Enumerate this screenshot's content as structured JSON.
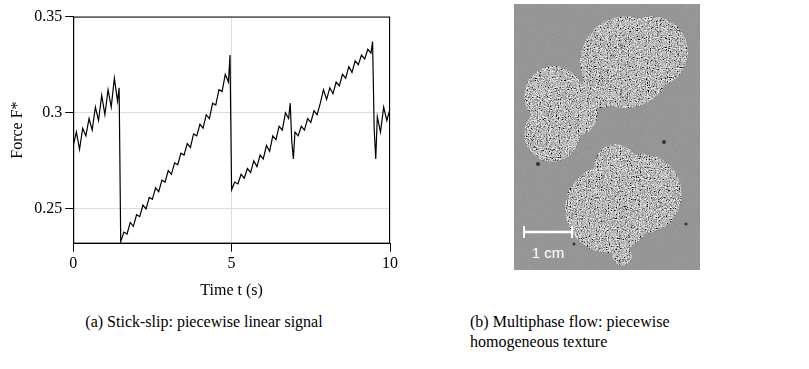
{
  "chart_data": {
    "type": "line",
    "title": "(a) Stick-slip: piecewise linear signal",
    "x_label": "Time t (s)",
    "y_label": "Force F*",
    "color": "#000000",
    "grid": true,
    "xlim": [
      0,
      10
    ],
    "xticks": [
      0,
      5,
      10
    ],
    "ylim": [
      0.232,
      0.35
    ],
    "yticks": [
      0.25,
      0.3,
      0.35
    ],
    "x": [
      0.0,
      0.1,
      0.2,
      0.3,
      0.4,
      0.5,
      0.6,
      0.7,
      0.8,
      0.9,
      1.0,
      1.1,
      1.2,
      1.3,
      1.4,
      1.45,
      1.5,
      1.6,
      1.7,
      1.8,
      1.9,
      2.0,
      2.1,
      2.2,
      2.3,
      2.4,
      2.5,
      2.6,
      2.7,
      2.8,
      2.9,
      3.0,
      3.1,
      3.2,
      3.3,
      3.4,
      3.5,
      3.6,
      3.7,
      3.8,
      3.9,
      4.0,
      4.1,
      4.2,
      4.3,
      4.4,
      4.5,
      4.6,
      4.7,
      4.8,
      4.9,
      4.95,
      5.0,
      5.1,
      5.2,
      5.3,
      5.4,
      5.5,
      5.6,
      5.7,
      5.8,
      5.9,
      6.0,
      6.1,
      6.2,
      6.3,
      6.4,
      6.5,
      6.6,
      6.7,
      6.8,
      6.85,
      6.9,
      6.95,
      7.0,
      7.1,
      7.2,
      7.3,
      7.4,
      7.5,
      7.6,
      7.7,
      7.8,
      7.9,
      8.0,
      8.1,
      8.2,
      8.3,
      8.4,
      8.5,
      8.6,
      8.7,
      8.8,
      8.9,
      9.0,
      9.1,
      9.2,
      9.3,
      9.4,
      9.45,
      9.5,
      9.55,
      9.6,
      9.7,
      9.8,
      9.9,
      10.0
    ],
    "values": [
      0.283,
      0.29,
      0.281,
      0.292,
      0.288,
      0.297,
      0.291,
      0.303,
      0.296,
      0.309,
      0.299,
      0.312,
      0.303,
      0.318,
      0.306,
      0.313,
      0.233,
      0.238,
      0.237,
      0.243,
      0.241,
      0.247,
      0.246,
      0.252,
      0.25,
      0.256,
      0.255,
      0.261,
      0.259,
      0.265,
      0.264,
      0.27,
      0.268,
      0.274,
      0.273,
      0.279,
      0.278,
      0.284,
      0.282,
      0.289,
      0.288,
      0.294,
      0.292,
      0.299,
      0.297,
      0.305,
      0.304,
      0.312,
      0.311,
      0.32,
      0.316,
      0.33,
      0.26,
      0.264,
      0.263,
      0.268,
      0.266,
      0.271,
      0.269,
      0.275,
      0.272,
      0.278,
      0.276,
      0.283,
      0.28,
      0.288,
      0.286,
      0.293,
      0.291,
      0.3,
      0.297,
      0.305,
      0.285,
      0.276,
      0.29,
      0.288,
      0.293,
      0.291,
      0.297,
      0.295,
      0.301,
      0.299,
      0.305,
      0.312,
      0.307,
      0.313,
      0.31,
      0.316,
      0.314,
      0.32,
      0.318,
      0.324,
      0.321,
      0.327,
      0.325,
      0.33,
      0.328,
      0.333,
      0.331,
      0.337,
      0.292,
      0.276,
      0.298,
      0.29,
      0.303,
      0.296,
      0.302
    ]
  },
  "image_panel": {
    "caption": "(b) Multiphase flow: piecewise homogeneous texture",
    "scale_bar": "1 cm"
  }
}
